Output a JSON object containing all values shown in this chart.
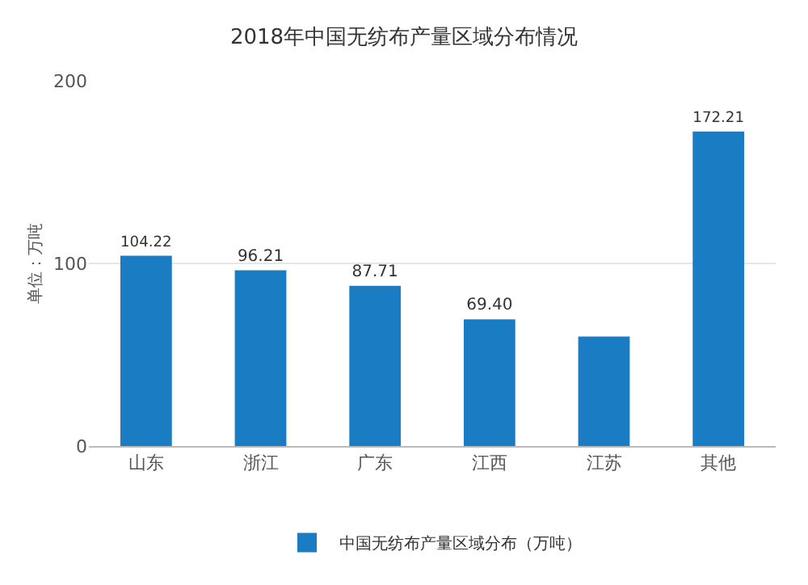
{
  "chart_data": {
    "type": "bar",
    "title": "2018年中国无纺布产量区域分布情况",
    "ylabel": "单位：万吨",
    "categories": [
      "山东",
      "浙江",
      "广东",
      "江西",
      "江苏",
      "其他"
    ],
    "series": [
      {
        "name": "中国无纺布产量区域分布（万吨）",
        "color": "#1a7cc3",
        "values": [
          104.22,
          96.21,
          87.71,
          69.4,
          60,
          172.21
        ],
        "value_labels": [
          "104.22",
          "96.21",
          "87.71",
          "69.40",
          null,
          "172.21"
        ]
      }
    ],
    "ylim": [
      0,
      200
    ],
    "yticks": [
      0,
      100,
      200
    ],
    "grid": "y",
    "legend": "bottom"
  }
}
